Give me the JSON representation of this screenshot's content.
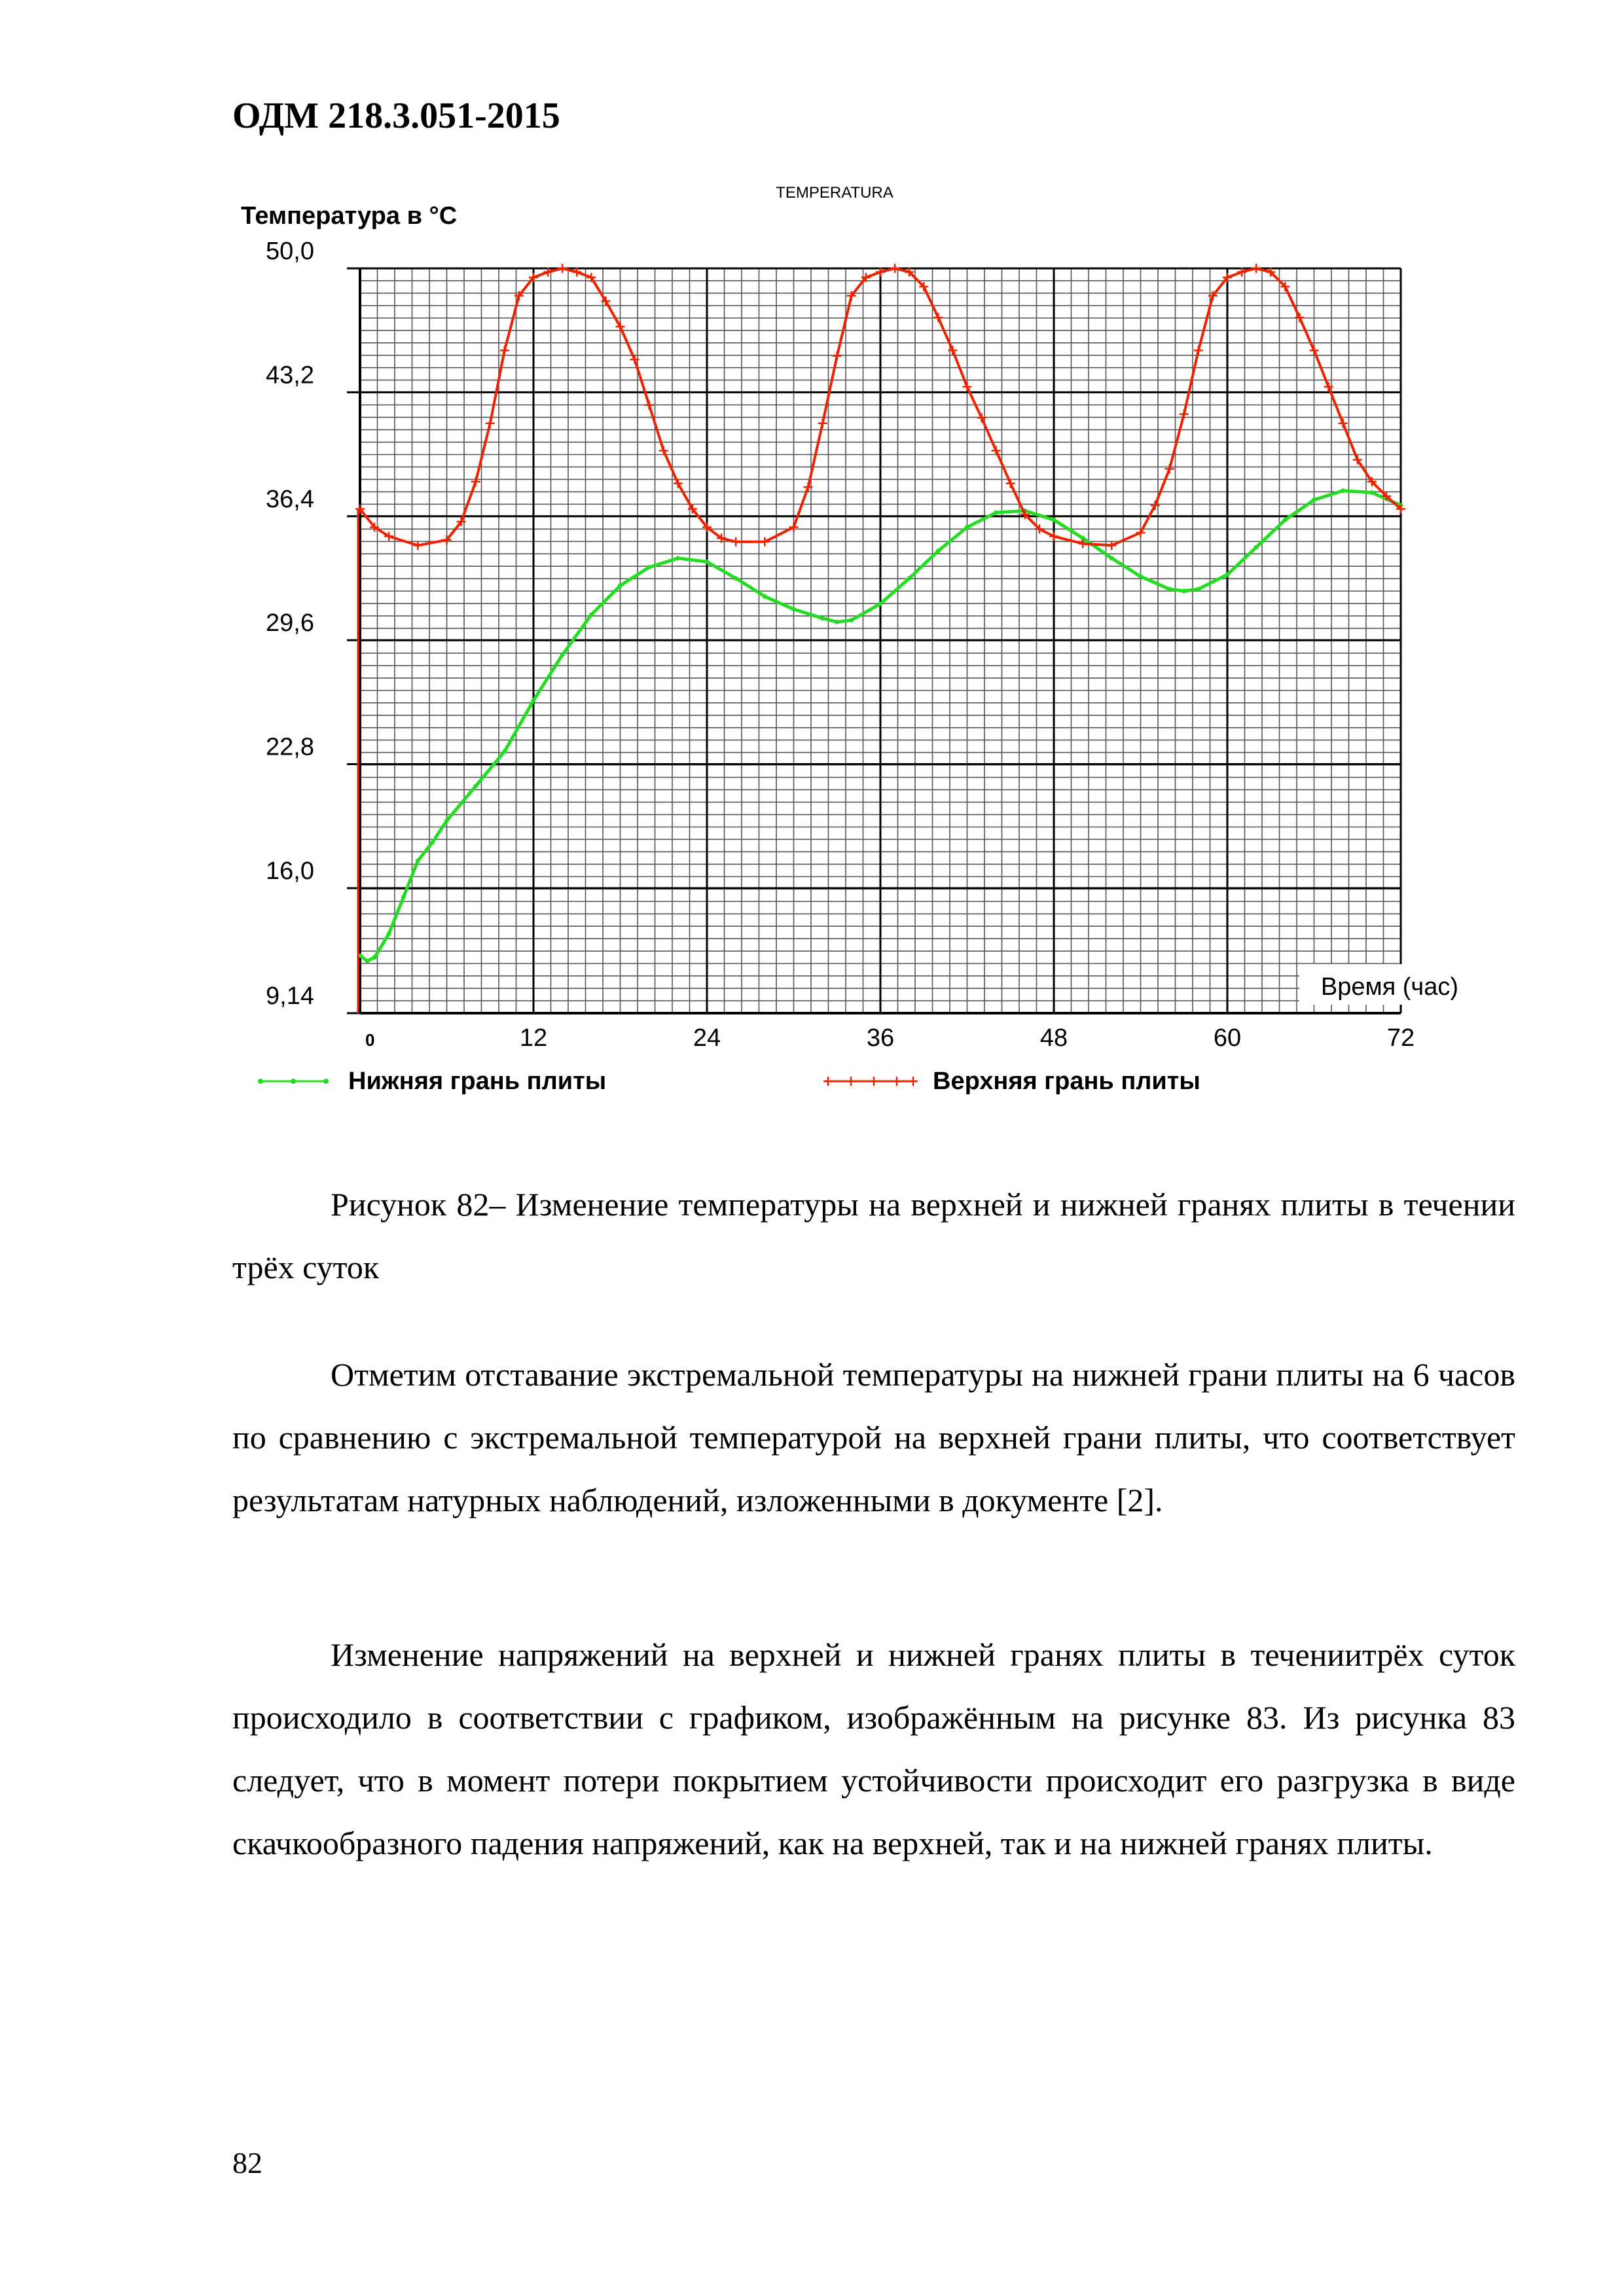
{
  "header": {
    "doc_code": "ОДМ 218.3.051-2015"
  },
  "chart_data": {
    "type": "line",
    "title": "TEMPERATURA",
    "ylabel": "Температура в °С",
    "xlabel": "Время (час)",
    "ylim": [
      9.14,
      50.0
    ],
    "xlim": [
      0,
      72
    ],
    "y_ticks": [
      "50,0",
      "43,2",
      "36,4",
      "29,6",
      "22,8",
      "16,0",
      "9,14"
    ],
    "y_tick_values": [
      50.0,
      43.2,
      36.4,
      29.6,
      22.8,
      16.0,
      9.14
    ],
    "x_ticks": [
      "0",
      "12",
      "24",
      "36",
      "48",
      "60",
      "72"
    ],
    "x_tick_values": [
      0,
      12,
      24,
      36,
      48,
      60,
      72
    ],
    "grid": true,
    "colors": {
      "top": "#ee2200",
      "bottom": "#22dd22",
      "grid_minor": "#555555",
      "grid_major": "#000000"
    },
    "series": [
      {
        "name": "Нижняя грань плиты",
        "color": "#22dd22",
        "x": [
          0,
          0.5,
          1,
          2,
          3,
          4,
          5,
          6,
          8,
          10,
          12,
          14,
          16,
          18,
          20,
          22,
          24,
          26,
          28,
          30,
          32,
          33,
          34,
          36,
          38,
          40,
          42,
          44,
          46,
          48,
          50,
          52,
          54,
          56,
          57,
          58,
          60,
          62,
          64,
          66,
          68,
          70,
          72
        ],
        "y": [
          12.3,
          12.0,
          12.2,
          13.5,
          15.5,
          17.5,
          18.5,
          19.7,
          21.6,
          23.5,
          26.3,
          28.8,
          31.0,
          32.6,
          33.6,
          34.1,
          33.9,
          33.0,
          32.0,
          31.3,
          30.8,
          30.6,
          30.7,
          31.6,
          33.0,
          34.5,
          35.8,
          36.6,
          36.7,
          36.2,
          35.2,
          34.1,
          33.1,
          32.4,
          32.3,
          32.4,
          33.2,
          34.7,
          36.2,
          37.3,
          37.8,
          37.7,
          37.0
        ]
      },
      {
        "name": "Верхняя грань плиты",
        "color": "#ee2200",
        "x": [
          0,
          1,
          2,
          4,
          6,
          7,
          8,
          9,
          10,
          11,
          12,
          13,
          14,
          15,
          16,
          17,
          18,
          19,
          20,
          21,
          22,
          23,
          24,
          25,
          26,
          28,
          30,
          31,
          32,
          33,
          34,
          35,
          36,
          37,
          38,
          39,
          40,
          41,
          42,
          43,
          44,
          45,
          46,
          47,
          48,
          50,
          52,
          54,
          55,
          56,
          57,
          58,
          59,
          60,
          61,
          62,
          63,
          64,
          65,
          66,
          67,
          68,
          69,
          70,
          71,
          72
        ],
        "y": [
          36.8,
          35.8,
          35.3,
          34.8,
          35.1,
          36.1,
          38.3,
          41.5,
          45.5,
          48.5,
          49.5,
          49.8,
          50.0,
          49.8,
          49.5,
          48.2,
          46.8,
          45.0,
          42.5,
          40.0,
          38.2,
          36.8,
          35.8,
          35.2,
          35.0,
          35.0,
          35.8,
          38.0,
          41.5,
          45.2,
          48.5,
          49.5,
          49.8,
          50.0,
          49.8,
          49.0,
          47.3,
          45.5,
          43.5,
          41.8,
          40.0,
          38.2,
          36.5,
          35.7,
          35.3,
          34.9,
          34.8,
          35.5,
          37.0,
          39.0,
          42.0,
          45.5,
          48.5,
          49.5,
          49.8,
          50.0,
          49.8,
          49.0,
          47.3,
          45.5,
          43.5,
          41.5,
          39.5,
          38.3,
          37.5,
          36.8
        ]
      }
    ],
    "legend_position": "bottom"
  },
  "caption": "Рисунок 82– Изменение температуры на верхней и нижней гранях плиты в течении трёх суток",
  "paragraph1": "Отметим отставание экстремальной температуры на нижней грани плиты на 6 часов по сравнению с экстремальной температурой на верхней грани плиты, что соответствует результатам натурных наблюдений, изложенными в документе [2].",
  "paragraph2": "Изменение напряжений на верхней и нижней гранях плиты в течениитрёх суток происходило в соответствии с графиком, изображённым на рисунке 83. Из рисунка 83 следует, что в момент потери покрытием устойчивости происходит его разгрузка в виде скачкообразного падения напряжений, как на верхней, так и на нижней гранях плиты.",
  "page_number": "82"
}
